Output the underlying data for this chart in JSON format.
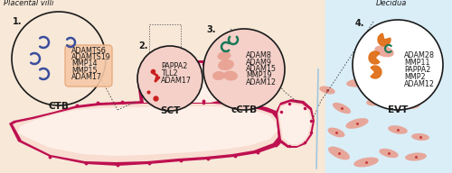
{
  "placental_villi_label": "Placental villi",
  "decidua_label": "Decidua",
  "cell_labels": [
    "CTB",
    "SCT",
    "cCTB",
    "EVT"
  ],
  "cell_numbers": [
    "1.",
    "2.",
    "3.",
    "4."
  ],
  "ctb_genes": [
    "ADAMTS6",
    "ADAMTS19",
    "MMP14",
    "MMP15",
    "ADAM17"
  ],
  "sct_genes": [
    "PAPPA2",
    "TLL2",
    "ADAM17"
  ],
  "cctb_genes": [
    "ADAM8",
    "ADAM9",
    "ADAM15",
    "MMP19",
    "ADAM12"
  ],
  "evt_genes": [
    "ADAM28",
    "MMP11",
    "PAPPA2",
    "MMP2",
    "ADAM12"
  ],
  "bg_left": "#f7e8d8",
  "bg_right": "#daeef8",
  "villus_fill": "#f8ddd0",
  "villus_inner_fill": "#fdf0e8",
  "villus_border": "#be1050",
  "circle_border": "#1a1a1a",
  "ctb_circle_fill": "#f8e8d8",
  "sct_circle_fill": "#f5d0c8",
  "cctb_circle_fill": "#f5d0c8",
  "evt_circle_fill": "#ffffff",
  "ctb_cell_fill": "#f5c8a8",
  "ctb_cell_border": "#e8a878",
  "blue_color": "#3a4e9c",
  "red_color": "#c82020",
  "teal_color": "#1a7858",
  "orange_color": "#e07018",
  "salmon_color": "#e8a090",
  "dot_color": "#be1050",
  "dashed_color": "#444444",
  "text_color": "#1a1a1a",
  "font_size_genes": 5.8,
  "font_size_labels": 7.5,
  "font_size_numbers": 7
}
